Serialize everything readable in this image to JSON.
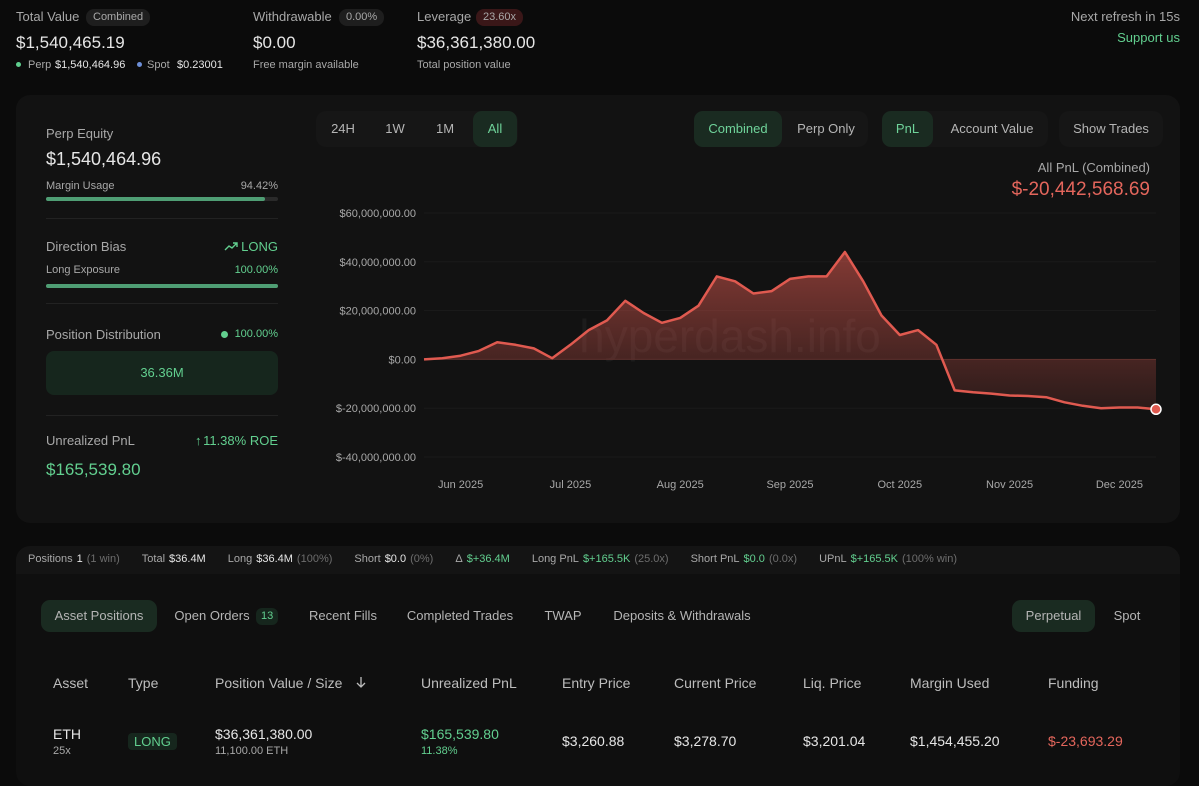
{
  "header": {
    "total_value": {
      "label": "Total Value",
      "badge": "Combined",
      "value": "$1,540,465.19",
      "perp_label": "Perp",
      "perp_value": "$1,540,464.96",
      "spot_label": "Spot",
      "spot_value": "$0.23001"
    },
    "withdrawable": {
      "label": "Withdrawable",
      "badge": "0.00%",
      "value": "$0.00",
      "note": "Free margin available"
    },
    "leverage": {
      "label": "Leverage",
      "badge": "23.60x",
      "value": "$36,361,380.00",
      "note": "Total position value"
    },
    "refresh": "Next refresh in 15s",
    "support": "Support us"
  },
  "summary": {
    "perp_equity": {
      "label": "Perp Equity",
      "value": "$1,540,464.96"
    },
    "margin_usage": {
      "label": "Margin Usage",
      "percent": {
        "value": 94.42,
        "label": "94.42%"
      }
    },
    "direction_bias": {
      "label": "Direction Bias",
      "value": "LONG"
    },
    "long_exposure": {
      "label": "Long Exposure",
      "percent": {
        "value": 100,
        "label": "100.00%"
      }
    },
    "position_distribution": {
      "label": "Position Distribution",
      "percent": "100.00%",
      "bar_label": "36.36M"
    },
    "unrealized_pnl": {
      "label": "Unrealized PnL",
      "roe": "11.38% ROE",
      "value": "$165,539.80"
    }
  },
  "chart_controls": {
    "ranges": [
      "24H",
      "1W",
      "1M",
      "All"
    ],
    "modes": [
      "Combined",
      "Perp Only"
    ],
    "metrics": [
      "PnL",
      "Account Value"
    ],
    "show_trades": "Show Trades"
  },
  "chart_data": {
    "type": "area",
    "title": "All PnL (Combined)",
    "subtitle": "$-20,442,568.69",
    "watermark": "hyperdash.info",
    "color": "#e05a50",
    "grid": true,
    "categories": [
      null,
      null,
      "Jun 2025",
      null,
      null,
      null,
      null,
      null,
      "Jul 2025",
      null,
      null,
      null,
      null,
      null,
      "Aug 2025",
      null,
      null,
      null,
      null,
      null,
      "Sep 2025",
      null,
      null,
      null,
      null,
      null,
      "Oct 2025",
      null,
      null,
      null,
      null,
      null,
      "Nov 2025",
      null,
      null,
      null,
      null,
      null,
      "Dec 2025",
      null,
      null
    ],
    "values": [
      0,
      500000,
      1500000,
      3500000,
      7000000,
      6000000,
      4500000,
      500000,
      6000000,
      12000000,
      16000000,
      24000000,
      19000000,
      15000000,
      17000000,
      22000000,
      34000000,
      32000000,
      27000000,
      28000000,
      33000000,
      34000000,
      34000000,
      44000000,
      32000000,
      18000000,
      10000000,
      12000000,
      6000000,
      -12700000,
      -13500000,
      -14000000,
      -14800000,
      -15000000,
      -15500000,
      -17600000,
      -19000000,
      -20000000,
      -19700000,
      -19700000,
      -20442568.69
    ],
    "ylim": [
      -40000000,
      60000000
    ],
    "yticks": [
      {
        "value": -40000000,
        "label": "$-40,000,000.00"
      },
      {
        "value": -20000000,
        "label": "$-20,000,000.00"
      },
      {
        "value": 0,
        "label": "$0.00"
      },
      {
        "value": 20000000,
        "label": "$20,000,000.00"
      },
      {
        "value": 40000000,
        "label": "$40,000,000.00"
      },
      {
        "value": 60000000,
        "label": "$60,000,000.00"
      }
    ]
  },
  "stats": [
    {
      "label": "Positions",
      "value": "1",
      "note": "(1 win)"
    },
    {
      "label": "Total",
      "value": "$36.4M"
    },
    {
      "label": "Long",
      "value": "$36.4M",
      "note": "(100%)"
    },
    {
      "label": "Short",
      "value": "$0.0",
      "note": "(0%)"
    },
    {
      "label": "Δ",
      "value": "$+36.4M"
    },
    {
      "label": "Long PnL",
      "value": "$+165.5K",
      "note": "(25.0x)"
    },
    {
      "label": "Short PnL",
      "value": "$0.0",
      "note": "(0.0x)"
    },
    {
      "label": "UPnL",
      "value": "$+165.5K",
      "note": "(100% win)"
    }
  ],
  "tabs": {
    "items": [
      "Asset Positions",
      "Open Orders",
      "Recent Fills",
      "Completed Trades",
      "TWAP",
      "Deposits & Withdrawals"
    ],
    "open_orders_count": "13",
    "markets": [
      "Perpetual",
      "Spot"
    ]
  },
  "positions_table": {
    "columns": [
      "Asset",
      "Type",
      "Position Value / Size",
      "Unrealized PnL",
      "Entry Price",
      "Current Price",
      "Liq. Price",
      "Margin Used",
      "Funding"
    ],
    "rows": [
      {
        "asset": "ETH",
        "leverage": "25x",
        "type": "LONG",
        "position_value": "$36,361,380.00",
        "size": "11,100.00 ETH",
        "unrealized_pnl": "$165,539.80",
        "roe": "11.38%",
        "entry_price": "$3,260.88",
        "current_price": "$3,278.70",
        "liq_price": "$3,201.04",
        "margin_used": "$1,454,455.20",
        "funding": "$-23,693.29"
      }
    ]
  }
}
